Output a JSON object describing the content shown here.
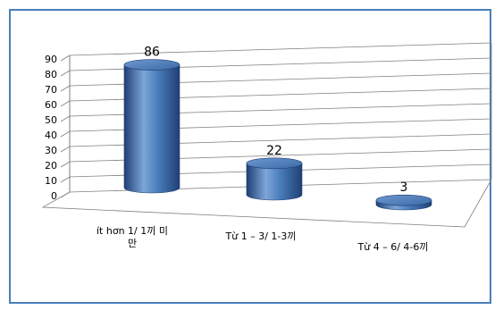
{
  "chart_data": {
    "type": "bar",
    "style": "3d-cylinder",
    "categories": [
      "ít hơn 1/ 1끼 미\n만",
      "Từ 1 – 3/ 1-3끼",
      "Từ 4 – 6/ 4-6끼"
    ],
    "values": [
      86,
      22,
      3
    ],
    "title": "",
    "xlabel": "",
    "ylabel": "",
    "ylim": [
      0,
      90
    ],
    "yticks": [
      0,
      10,
      20,
      30,
      40,
      50,
      60,
      70,
      80,
      90
    ],
    "grid": true,
    "legend": "none",
    "data_labels": true,
    "colors": {
      "bar_mid": "#4a7ebb",
      "bar_light": "#7ea6d8",
      "bar_dark": "#1f3f73",
      "grid": "#7f7f7f",
      "frame": "#4a7ebb"
    }
  }
}
